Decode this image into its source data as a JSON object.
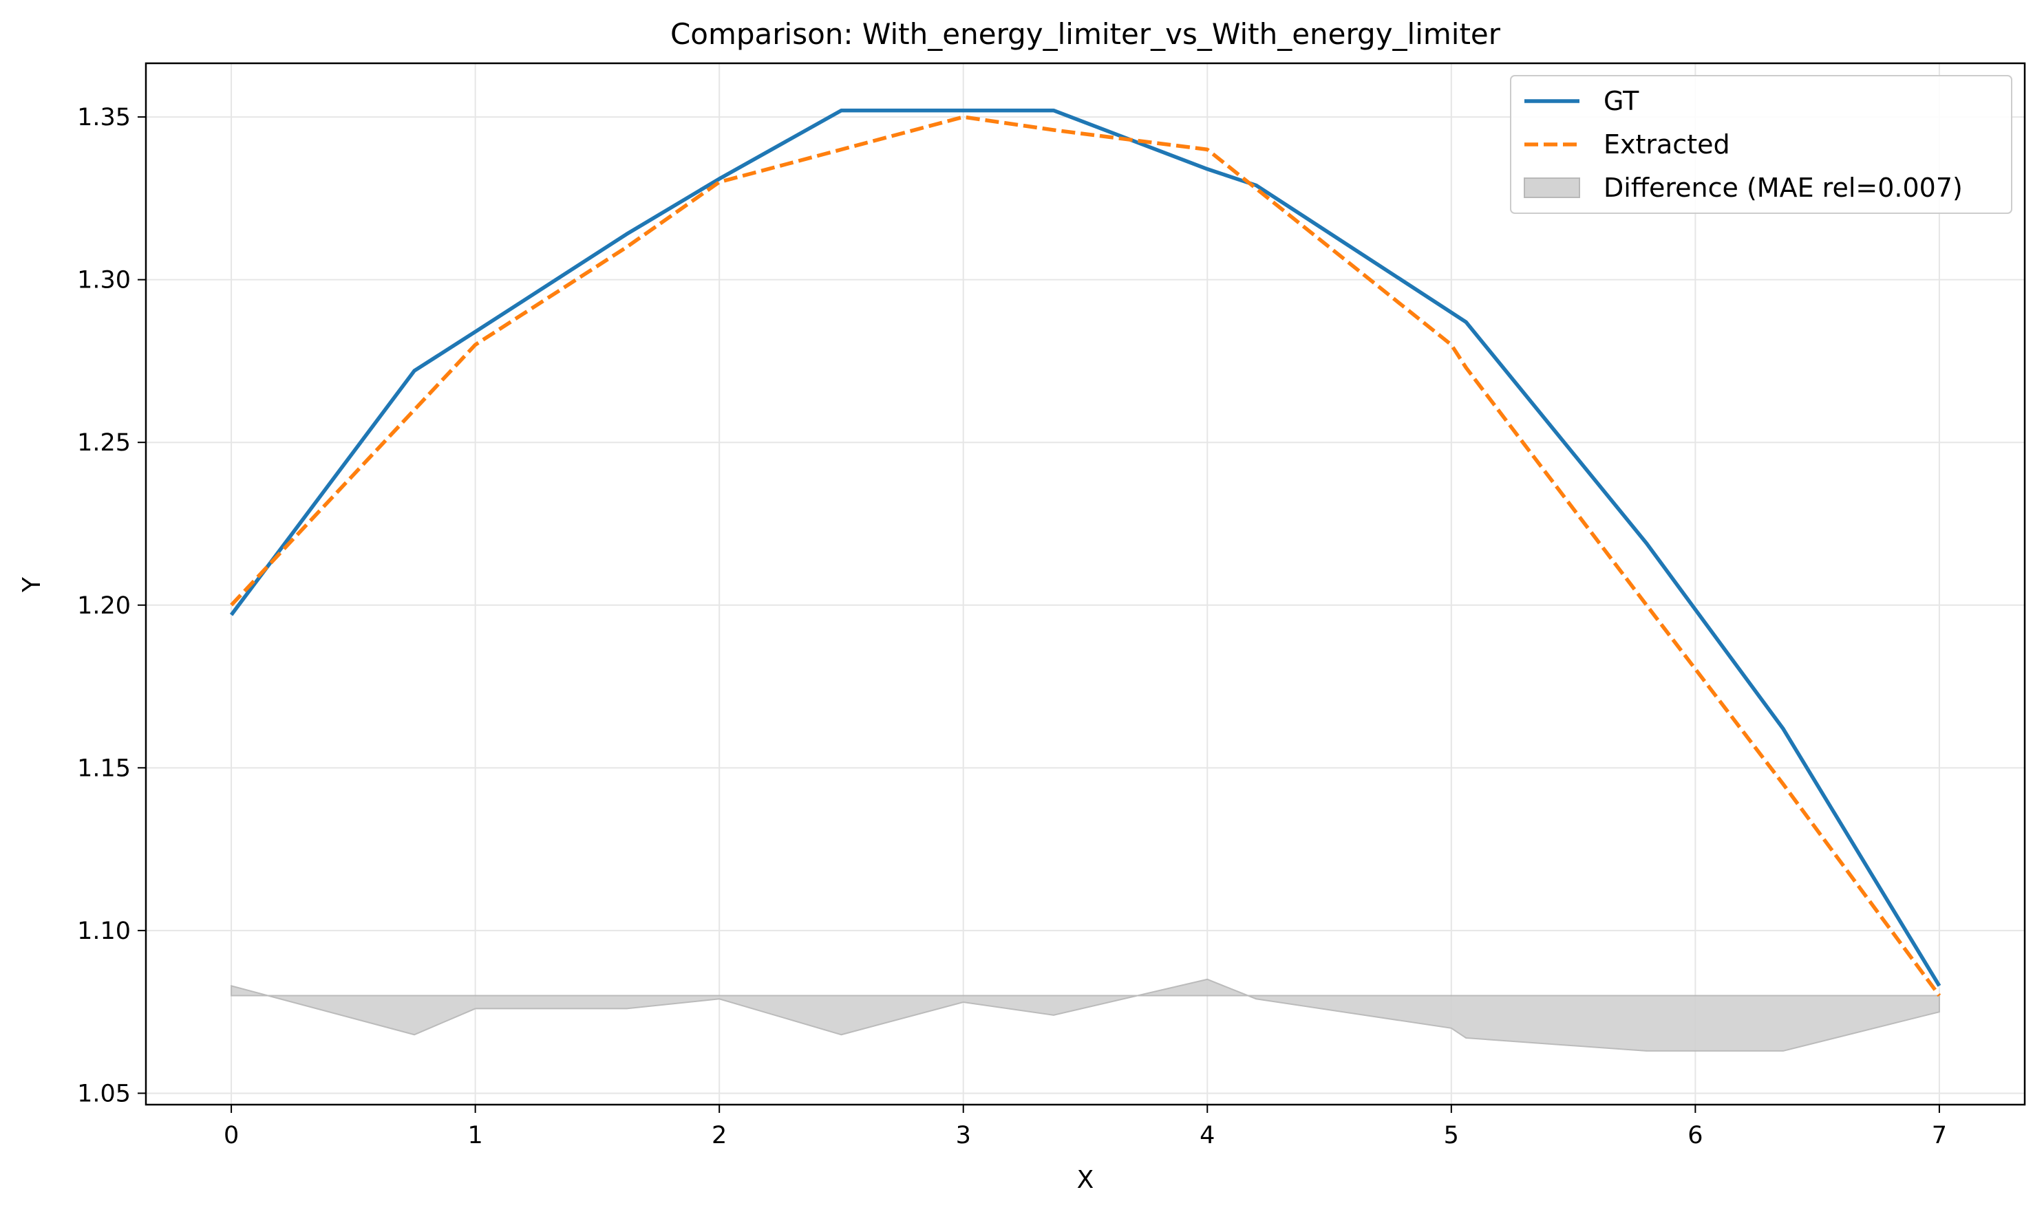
{
  "chart_data": {
    "type": "line",
    "title": "Comparison: With_energy_limiter_vs_With_energy_limiter",
    "xlabel": "X",
    "ylabel": "Y",
    "xlim": [
      -0.35,
      7.35
    ],
    "ylim": [
      1.0465,
      1.3665
    ],
    "xticks": [
      0,
      1,
      2,
      3,
      4,
      5,
      6,
      7
    ],
    "yticks": [
      1.05,
      1.1,
      1.15,
      1.2,
      1.25,
      1.3,
      1.35
    ],
    "grid": true,
    "legend_position": "top-right",
    "series": [
      {
        "name": "GT",
        "style": "solid",
        "color": "#1f77b4",
        "x": [
          0,
          0.75,
          1.0,
          1.62,
          2.0,
          2.5,
          3.0,
          3.37,
          4.0,
          4.2,
          5.06,
          5.8,
          6.36,
          7.0
        ],
        "y": [
          1.197,
          1.272,
          1.284,
          1.314,
          1.331,
          1.352,
          1.352,
          1.352,
          1.334,
          1.329,
          1.287,
          1.219,
          1.162,
          1.083
        ]
      },
      {
        "name": "Extracted",
        "style": "dashed",
        "color": "#ff7f0e",
        "x": [
          0,
          0.75,
          1.0,
          1.62,
          2.0,
          2.5,
          3.0,
          3.37,
          4.0,
          4.2,
          5.0,
          5.06,
          5.8,
          6.36,
          7.0
        ],
        "y": [
          1.2,
          1.26,
          1.28,
          1.31,
          1.33,
          1.34,
          1.35,
          1.346,
          1.34,
          1.328,
          1.28,
          1.273,
          1.2,
          1.145,
          1.08
        ]
      },
      {
        "name": "Difference (MAE rel=0.007)",
        "style": "fill",
        "color": "#d3d3d3",
        "baseline": 1.08,
        "x": [
          0,
          0.75,
          1.0,
          1.62,
          2.0,
          2.5,
          3.0,
          3.37,
          4.0,
          4.2,
          5.0,
          5.06,
          5.8,
          6.36,
          7.0
        ],
        "y": [
          1.083,
          1.068,
          1.076,
          1.076,
          1.079,
          1.068,
          1.078,
          1.074,
          1.085,
          1.079,
          1.07,
          1.067,
          1.063,
          1.063,
          1.075
        ]
      }
    ]
  }
}
